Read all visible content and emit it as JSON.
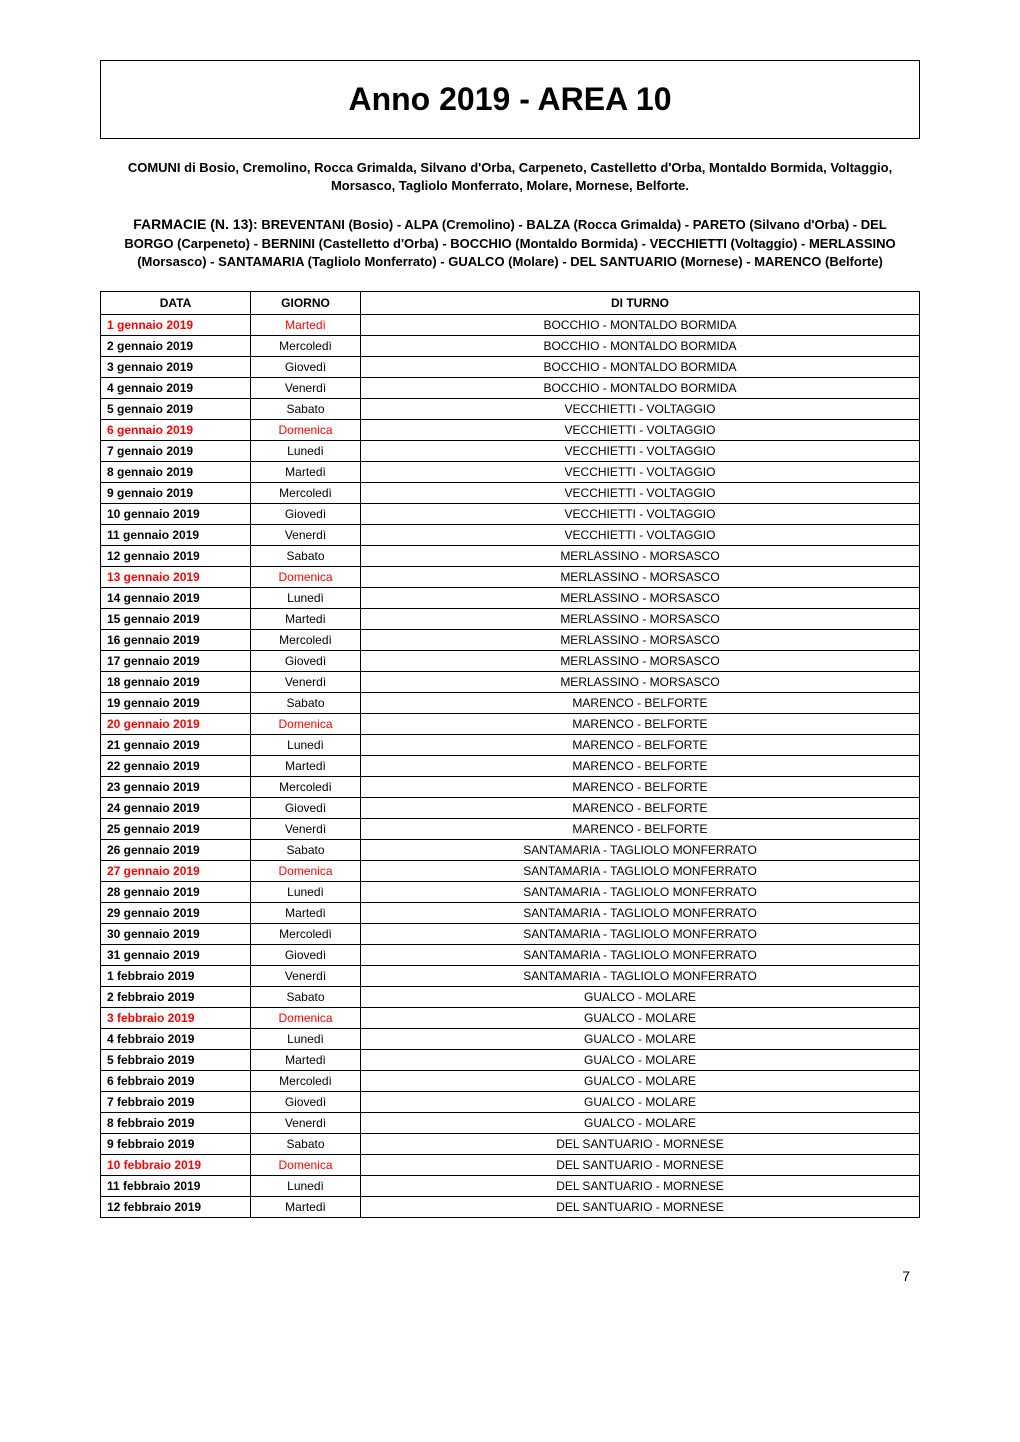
{
  "title": "Anno 2019 - AREA 10",
  "description": "COMUNI di Bosio, Cremolino, Rocca Grimalda, Silvano d'Orba, Carpeneto, Castelletto d'Orba, Montaldo Bormida, Voltaggio, Morsasco, Tagliolo Monferrato, Molare, Mornese, Belforte.",
  "farmacie_label": "FARMACIE (N. 13):",
  "farmacie_text": "BREVENTANI (Bosio) - ALPA (Cremolino) - BALZA (Rocca Grimalda) - PARETO (Silvano d'Orba) - DEL BORGO (Carpeneto) - BERNINI (Castelletto d'Orba) - BOCCHIO (Montaldo Bormida) - VECCHIETTI (Voltaggio) - MERLASSINO (Morsasco) - SANTAMARIA (Tagliolo Monferrato) - GUALCO (Molare) - DEL SANTUARIO (Mornese) - MARENCO (Belforte)",
  "headers": {
    "data": "DATA",
    "giorno": "GIORNO",
    "turno": "DI TURNO"
  },
  "rows": [
    {
      "data": "1 gennaio 2019",
      "giorno": "Martedì",
      "turno": "BOCCHIO - MONTALDO BORMIDA",
      "red": true
    },
    {
      "data": "2 gennaio 2019",
      "giorno": "Mercoledì",
      "turno": "BOCCHIO - MONTALDO BORMIDA",
      "red": false
    },
    {
      "data": "3 gennaio 2019",
      "giorno": "Giovedì",
      "turno": "BOCCHIO - MONTALDO BORMIDA",
      "red": false
    },
    {
      "data": "4 gennaio 2019",
      "giorno": "Venerdì",
      "turno": "BOCCHIO - MONTALDO BORMIDA",
      "red": false
    },
    {
      "data": "5 gennaio 2019",
      "giorno": "Sabato",
      "turno": "VECCHIETTI - VOLTAGGIO",
      "red": false
    },
    {
      "data": "6 gennaio 2019",
      "giorno": "Domenica",
      "turno": "VECCHIETTI - VOLTAGGIO",
      "red": true
    },
    {
      "data": "7 gennaio 2019",
      "giorno": "Lunedì",
      "turno": "VECCHIETTI - VOLTAGGIO",
      "red": false
    },
    {
      "data": "8 gennaio 2019",
      "giorno": "Martedì",
      "turno": "VECCHIETTI - VOLTAGGIO",
      "red": false
    },
    {
      "data": "9 gennaio 2019",
      "giorno": "Mercoledì",
      "turno": "VECCHIETTI - VOLTAGGIO",
      "red": false
    },
    {
      "data": "10 gennaio 2019",
      "giorno": "Giovedì",
      "turno": "VECCHIETTI - VOLTAGGIO",
      "red": false
    },
    {
      "data": "11 gennaio 2019",
      "giorno": "Venerdì",
      "turno": "VECCHIETTI - VOLTAGGIO",
      "red": false
    },
    {
      "data": "12 gennaio 2019",
      "giorno": "Sabato",
      "turno": "MERLASSINO - MORSASCO",
      "red": false
    },
    {
      "data": "13 gennaio 2019",
      "giorno": "Domenica",
      "turno": "MERLASSINO - MORSASCO",
      "red": true
    },
    {
      "data": "14 gennaio 2019",
      "giorno": "Lunedì",
      "turno": "MERLASSINO - MORSASCO",
      "red": false
    },
    {
      "data": "15 gennaio 2019",
      "giorno": "Martedì",
      "turno": "MERLASSINO - MORSASCO",
      "red": false
    },
    {
      "data": "16 gennaio 2019",
      "giorno": "Mercoledì",
      "turno": "MERLASSINO - MORSASCO",
      "red": false
    },
    {
      "data": "17 gennaio 2019",
      "giorno": "Giovedì",
      "turno": "MERLASSINO - MORSASCO",
      "red": false
    },
    {
      "data": "18 gennaio 2019",
      "giorno": "Venerdì",
      "turno": "MERLASSINO - MORSASCO",
      "red": false
    },
    {
      "data": "19 gennaio 2019",
      "giorno": "Sabato",
      "turno": "MARENCO - BELFORTE",
      "red": false
    },
    {
      "data": "20 gennaio 2019",
      "giorno": "Domenica",
      "turno": "MARENCO - BELFORTE",
      "red": true
    },
    {
      "data": "21 gennaio 2019",
      "giorno": "Lunedì",
      "turno": "MARENCO - BELFORTE",
      "red": false
    },
    {
      "data": "22 gennaio 2019",
      "giorno": "Martedì",
      "turno": "MARENCO - BELFORTE",
      "red": false
    },
    {
      "data": "23 gennaio 2019",
      "giorno": "Mercoledì",
      "turno": "MARENCO - BELFORTE",
      "red": false
    },
    {
      "data": "24 gennaio 2019",
      "giorno": "Giovedì",
      "turno": "MARENCO - BELFORTE",
      "red": false
    },
    {
      "data": "25 gennaio 2019",
      "giorno": "Venerdì",
      "turno": "MARENCO - BELFORTE",
      "red": false
    },
    {
      "data": "26 gennaio 2019",
      "giorno": "Sabato",
      "turno": "SANTAMARIA - TAGLIOLO MONFERRATO",
      "red": false
    },
    {
      "data": "27 gennaio 2019",
      "giorno": "Domenica",
      "turno": "SANTAMARIA - TAGLIOLO MONFERRATO",
      "red": true
    },
    {
      "data": "28 gennaio 2019",
      "giorno": "Lunedì",
      "turno": "SANTAMARIA - TAGLIOLO MONFERRATO",
      "red": false
    },
    {
      "data": "29 gennaio 2019",
      "giorno": "Martedì",
      "turno": "SANTAMARIA - TAGLIOLO MONFERRATO",
      "red": false
    },
    {
      "data": "30 gennaio 2019",
      "giorno": "Mercoledì",
      "turno": "SANTAMARIA - TAGLIOLO MONFERRATO",
      "red": false
    },
    {
      "data": "31 gennaio 2019",
      "giorno": "Giovedì",
      "turno": "SANTAMARIA - TAGLIOLO MONFERRATO",
      "red": false
    },
    {
      "data": "1 febbraio 2019",
      "giorno": "Venerdì",
      "turno": "SANTAMARIA - TAGLIOLO MONFERRATO",
      "red": false
    },
    {
      "data": "2 febbraio 2019",
      "giorno": "Sabato",
      "turno": "GUALCO - MOLARE",
      "red": false
    },
    {
      "data": "3 febbraio 2019",
      "giorno": "Domenica",
      "turno": "GUALCO - MOLARE",
      "red": true
    },
    {
      "data": "4 febbraio 2019",
      "giorno": "Lunedì",
      "turno": "GUALCO - MOLARE",
      "red": false
    },
    {
      "data": "5 febbraio 2019",
      "giorno": "Martedì",
      "turno": "GUALCO - MOLARE",
      "red": false
    },
    {
      "data": "6 febbraio 2019",
      "giorno": "Mercoledì",
      "turno": "GUALCO - MOLARE",
      "red": false
    },
    {
      "data": "7 febbraio 2019",
      "giorno": "Giovedì",
      "turno": "GUALCO - MOLARE",
      "red": false
    },
    {
      "data": "8 febbraio 2019",
      "giorno": "Venerdì",
      "turno": "GUALCO - MOLARE",
      "red": false
    },
    {
      "data": "9 febbraio 2019",
      "giorno": "Sabato",
      "turno": "DEL SANTUARIO - MORNESE",
      "red": false
    },
    {
      "data": "10 febbraio 2019",
      "giorno": "Domenica",
      "turno": "DEL SANTUARIO - MORNESE",
      "red": true
    },
    {
      "data": "11 febbraio 2019",
      "giorno": "Lunedì",
      "turno": "DEL SANTUARIO - MORNESE",
      "red": false
    },
    {
      "data": "12 febbraio 2019",
      "giorno": "Martedì",
      "turno": "DEL SANTUARIO - MORNESE",
      "red": false
    }
  ],
  "page_number": "7",
  "colors": {
    "red": "#ff0000",
    "border": "#000000",
    "background": "#ffffff"
  }
}
